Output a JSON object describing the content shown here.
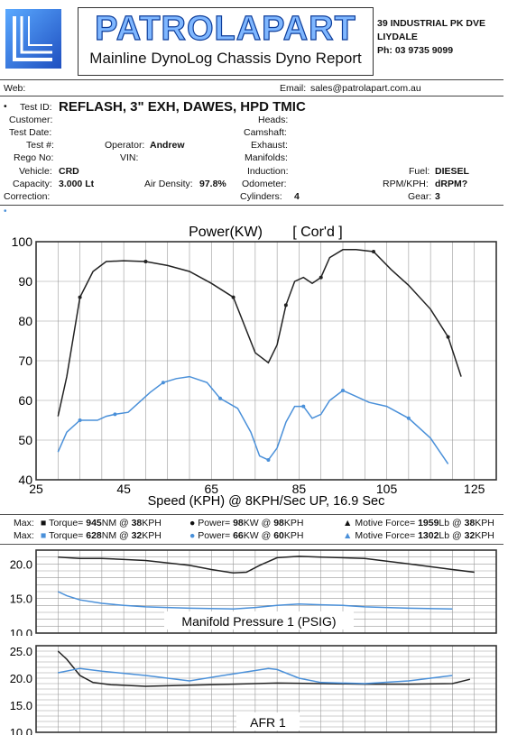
{
  "header": {
    "brand": "PATROLAPART",
    "subtitle": "Mainline DynoLog Chassis Dyno Report",
    "address_line1": "39 INDUSTRIAL PK DVE",
    "address_line2": "LIYDALE",
    "phone": "Ph: 03 9735 9099",
    "web_label": "Web:",
    "email_label": "Email:",
    "email": "sales@patrolapart.com.au"
  },
  "info": {
    "test_id_label": "Test ID:",
    "test_id": "REFLASH, 3\" EXH, DAWES, HPD TMIC",
    "customer_label": "Customer:",
    "test_date_label": "Test Date:",
    "test_num_label": "Test #:",
    "rego_label": "Rego No:",
    "vehicle_label": "Vehicle:",
    "vehicle": "CRD",
    "capacity_label": "Capacity:",
    "capacity": "3.000 Lt",
    "correction_label": "Correction:",
    "operator_label": "Operator:",
    "operator": "Andrew",
    "vin_label": "VIN:",
    "air_density_label": "Air Density:",
    "air_density": "97.8%",
    "heads_label": "Heads:",
    "camshaft_label": "Camshaft:",
    "exhaust_label": "Exhaust:",
    "manifolds_label": "Manifolds:",
    "induction_label": "Induction:",
    "odometer_label": "Odometer:",
    "cylinders_label": "Cylinders:",
    "cylinders": "4",
    "fuel_label": "Fuel:",
    "fuel": "DIESEL",
    "rpmkph_label": "RPM/KPH:",
    "rpmkph": "dRPM?",
    "gear_label": "Gear:",
    "gear": "3"
  },
  "legend": {
    "max_label": "Max:",
    "row1": {
      "torque": "Torque= ",
      "torque_val": "945",
      "torque_tail": "NM @ ",
      "torque_kph": "38",
      "kph": "KPH",
      "power": "Power= ",
      "power_val": "98",
      "power_tail": "KW @ ",
      "power_kph": "98",
      "mf": "Motive Force= ",
      "mf_val": "1959",
      "mf_tail": "Lb @ ",
      "mf_kph": "38"
    },
    "row2": {
      "torque": "Torque= ",
      "torque_val": "628",
      "torque_tail": "NM @ ",
      "torque_kph": "32",
      "kph": "KPH",
      "power": "Power= ",
      "power_val": "66",
      "power_tail": "KW @ ",
      "power_kph": "60",
      "mf": "Motive Force= ",
      "mf_val": "1302",
      "mf_tail": "Lb @ ",
      "mf_kph": "32"
    },
    "colors": {
      "run1": "#222222",
      "run2": "#4a90d9"
    }
  },
  "chart_data": [
    {
      "type": "line",
      "title": "Power(KW)",
      "subtitle": "[ Cor'd ]",
      "xlabel": "Speed (KPH) @ 8KPH/Sec UP, 16.9 Sec",
      "ylabel": "",
      "xlim": [
        25,
        130
      ],
      "ylim": [
        40,
        100
      ],
      "x_ticks": [
        25,
        45,
        65,
        85,
        105,
        125
      ],
      "y_ticks": [
        40,
        50,
        60,
        70,
        80,
        90,
        100
      ],
      "grid": true,
      "series": [
        {
          "x": [
            30,
            32,
            35,
            38,
            41,
            45,
            50,
            55,
            60,
            65,
            70,
            75,
            78,
            80,
            82,
            84,
            86,
            88,
            90,
            92,
            95,
            98,
            102,
            106,
            110,
            115,
            119,
            122
          ],
          "y": [
            56,
            66,
            86,
            92.5,
            95,
            95.2,
            95,
            94,
            92.5,
            89.5,
            86,
            72,
            69.5,
            74,
            84,
            90,
            91,
            89.5,
            91,
            96,
            98,
            98,
            97.5,
            93,
            89,
            83,
            76,
            66
          ]
        },
        {
          "x": [
            30,
            32,
            35,
            37,
            39,
            41,
            43,
            46,
            48,
            51,
            54,
            57,
            60,
            64,
            67,
            71,
            74,
            76,
            78,
            80,
            82,
            84,
            86,
            88,
            90,
            92,
            95,
            98,
            101,
            105,
            110,
            115,
            119
          ],
          "y": [
            47,
            52,
            55,
            55,
            55,
            56,
            56.5,
            57,
            59,
            62,
            64.5,
            65.5,
            66,
            64.5,
            60.5,
            58,
            52,
            46,
            45,
            48,
            54.5,
            58.5,
            58.5,
            55.5,
            56.5,
            60,
            62.5,
            61,
            59.5,
            58.5,
            55.5,
            50.5,
            44
          ]
        }
      ]
    },
    {
      "type": "line",
      "title": "Manifold Pressure 1 (PSIG)",
      "xlim": [
        25,
        130
      ],
      "ylim": [
        10,
        22
      ],
      "y_ticks": [
        10.0,
        15.0,
        20.0
      ],
      "grid": true,
      "series": [
        {
          "x": [
            30,
            35,
            40,
            50,
            60,
            65,
            70,
            73,
            76,
            80,
            85,
            90,
            100,
            110,
            120,
            125
          ],
          "y": [
            21,
            20.8,
            20.8,
            20.5,
            19.8,
            19.2,
            18.7,
            18.8,
            19.8,
            20.9,
            21.1,
            21.0,
            20.8,
            20.0,
            19.2,
            18.8
          ]
        },
        {
          "x": [
            30,
            32,
            35,
            40,
            45,
            50,
            60,
            70,
            75,
            80,
            85,
            90,
            95,
            100,
            110,
            120
          ],
          "y": [
            16.0,
            15.4,
            14.8,
            14.3,
            14.0,
            13.8,
            13.6,
            13.5,
            13.7,
            14.0,
            14.2,
            14.1,
            14.0,
            13.8,
            13.6,
            13.5
          ]
        }
      ]
    },
    {
      "type": "line",
      "title": "AFR 1",
      "xlim": [
        25,
        130
      ],
      "ylim": [
        10,
        26
      ],
      "y_ticks": [
        10.0,
        15.0,
        20.0,
        25.0
      ],
      "grid": true,
      "series": [
        {
          "x": [
            30,
            32,
            35,
            38,
            42,
            50,
            60,
            70,
            80,
            90,
            100,
            110,
            120,
            124
          ],
          "y": [
            25,
            23.5,
            20.5,
            19.2,
            18.8,
            18.5,
            18.7,
            18.9,
            19.1,
            19.0,
            18.9,
            18.9,
            19.0,
            19.8
          ]
        },
        {
          "x": [
            30,
            35,
            40,
            50,
            60,
            70,
            78,
            80,
            85,
            90,
            100,
            110,
            120
          ],
          "y": [
            21.0,
            21.8,
            21.3,
            20.5,
            19.5,
            20.8,
            21.8,
            21.6,
            20.0,
            19.2,
            19.0,
            19.5,
            20.5
          ]
        }
      ]
    }
  ]
}
